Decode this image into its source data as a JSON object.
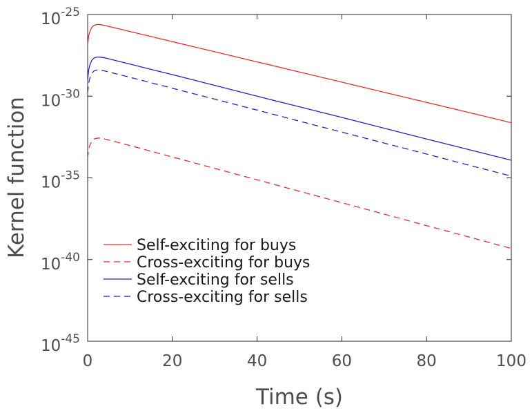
{
  "chart_data": {
    "type": "line",
    "xlabel": "Time (s)",
    "ylabel": "Kernel function",
    "xlim": [
      0,
      100
    ],
    "ylim_log10": [
      -45,
      -25
    ],
    "y_scale": "log",
    "grid": false,
    "legend_position": "bottom-left",
    "x_ticks": [
      {
        "value": 0,
        "label": "0"
      },
      {
        "value": 20,
        "label": "20"
      },
      {
        "value": 40,
        "label": "40"
      },
      {
        "value": 60,
        "label": "60"
      },
      {
        "value": 80,
        "label": "80"
      },
      {
        "value": 100,
        "label": "100"
      }
    ],
    "y_ticks": [
      {
        "log10": -25,
        "base": "10",
        "exp": "-25"
      },
      {
        "log10": -30,
        "base": "10",
        "exp": "-30"
      },
      {
        "log10": -35,
        "base": "10",
        "exp": "-35"
      },
      {
        "log10": -40,
        "base": "10",
        "exp": "-40"
      },
      {
        "log10": -45,
        "base": "10",
        "exp": "-45"
      }
    ],
    "x": [
      0,
      0.25,
      0.5,
      1,
      1.5,
      2,
      2.5,
      3,
      4,
      5,
      7,
      10,
      15,
      20,
      30,
      40,
      50,
      60,
      70,
      80,
      90,
      100
    ],
    "series": [
      {
        "name": "Self-exciting for buys",
        "color": "#e03030",
        "dash": "solid",
        "log10_values": [
          -26.9,
          -26.3,
          -26.05,
          -25.78,
          -25.67,
          -25.62,
          -25.61,
          -25.62,
          -25.67,
          -25.73,
          -25.85,
          -26.04,
          -26.35,
          -26.66,
          -27.28,
          -27.9,
          -28.52,
          -29.14,
          -29.76,
          -30.38,
          -31.0,
          -31.62
        ]
      },
      {
        "name": "Cross-exciting for buys",
        "color": "#e03030",
        "dash": "dashed",
        "log10_values": [
          -33.8,
          -33.25,
          -33.0,
          -32.75,
          -32.63,
          -32.58,
          -32.56,
          -32.57,
          -32.62,
          -32.68,
          -32.82,
          -33.02,
          -33.37,
          -33.72,
          -34.42,
          -35.12,
          -35.82,
          -36.52,
          -37.22,
          -37.92,
          -38.62,
          -39.32
        ]
      },
      {
        "name": "Self-exciting for sells",
        "color": "#2424b8",
        "dash": "solid",
        "log10_values": [
          -29.0,
          -28.4,
          -28.1,
          -27.8,
          -27.67,
          -27.62,
          -27.6,
          -27.61,
          -27.65,
          -27.71,
          -27.84,
          -28.03,
          -28.36,
          -28.68,
          -29.34,
          -30.0,
          -30.65,
          -31.3,
          -31.96,
          -32.62,
          -33.27,
          -33.92
        ]
      },
      {
        "name": "Cross-exciting for sells",
        "color": "#2424b8",
        "dash": "dashed",
        "log10_values": [
          -29.8,
          -29.2,
          -28.9,
          -28.6,
          -28.46,
          -28.41,
          -28.4,
          -28.41,
          -28.45,
          -28.52,
          -28.65,
          -28.84,
          -29.18,
          -29.51,
          -30.18,
          -30.85,
          -31.53,
          -32.2,
          -32.87,
          -33.54,
          -34.22,
          -34.89
        ]
      }
    ]
  }
}
